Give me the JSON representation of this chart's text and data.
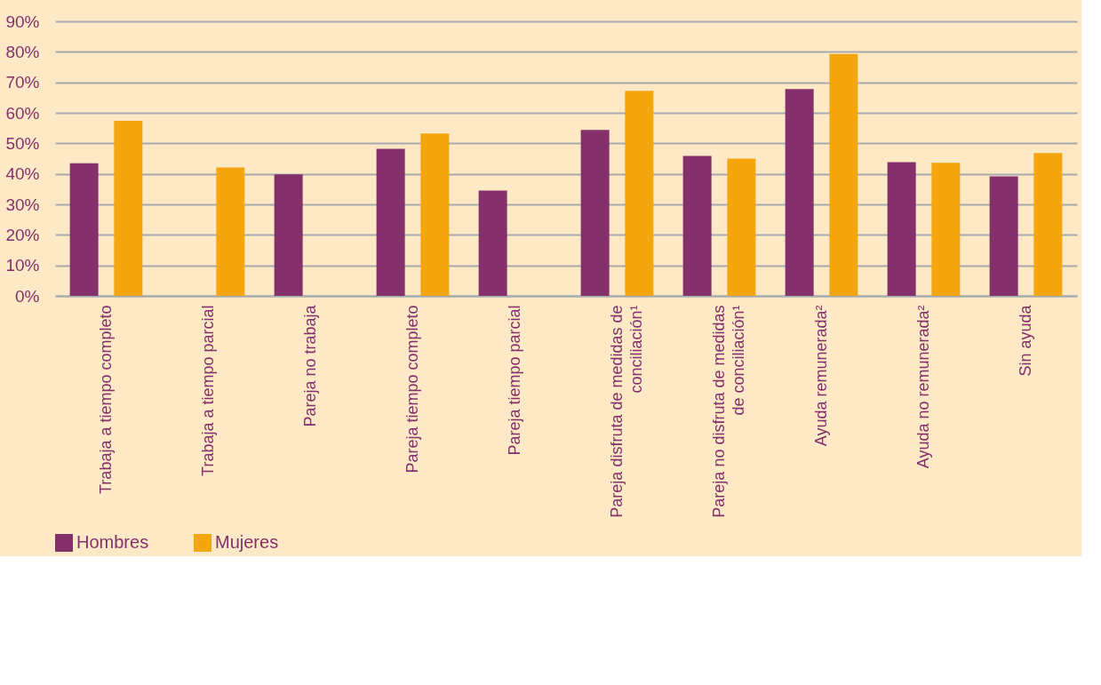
{
  "chart_data": {
    "type": "bar",
    "categories": [
      "Trabaja a tiempo completo",
      "Trabaja a tiempo parcial",
      "Pareja no trabaja",
      "Pareja tiempo completo",
      "Pareja tiempo parcial",
      "Pareja disfruta de medidas de conciliación¹",
      "Pareja no disfruta de medidas de conciliación¹",
      "Ayuda remunerada²",
      "Ayuda no remunerada²",
      "Sin ayuda"
    ],
    "series": [
      {
        "name": "Hombres",
        "color": "#84306b",
        "values": [
          43.5,
          null,
          39.8,
          48.2,
          34.5,
          54.4,
          45.9,
          67.8,
          43.8,
          39.2
        ]
      },
      {
        "name": "Mujeres",
        "color": "#f4a60f",
        "values": [
          57.4,
          42.1,
          null,
          53.2,
          null,
          67.2,
          45.0,
          79.3,
          43.6,
          46.8
        ]
      }
    ],
    "ylim": [
      0,
      90
    ],
    "yticks": [
      {
        "value": 0,
        "label": "0%"
      },
      {
        "value": 10,
        "label": "10%"
      },
      {
        "value": 20,
        "label": "20%"
      },
      {
        "value": 30,
        "label": "30%"
      },
      {
        "value": 40,
        "label": "40%"
      },
      {
        "value": 50,
        "label": "50%"
      },
      {
        "value": 60,
        "label": "60%"
      },
      {
        "value": 70,
        "label": "70%"
      },
      {
        "value": 80,
        "label": "80%"
      },
      {
        "value": 90,
        "label": "90%"
      }
    ],
    "grid": "y",
    "legend": "bottom"
  }
}
